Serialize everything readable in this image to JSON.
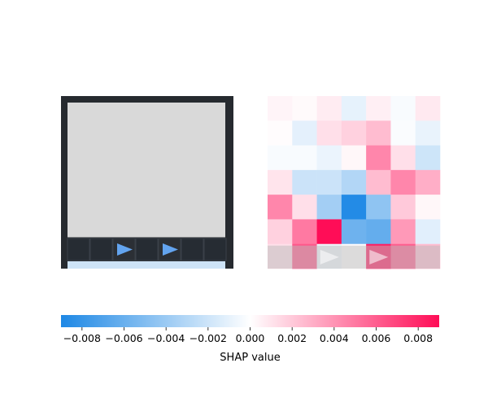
{
  "panel_left": {
    "cells": [
      [
        "e",
        "e",
        "e",
        "e",
        "e",
        "e",
        "e"
      ],
      [
        "e",
        "e",
        "e",
        "e",
        "e",
        "e",
        "e"
      ],
      [
        "e",
        "e",
        "e",
        "e",
        "e",
        "e",
        "e"
      ],
      [
        "e",
        "e",
        "e",
        "e",
        "e",
        "e",
        "e"
      ],
      [
        "e",
        "e",
        "e",
        "e",
        "e",
        "e",
        "e"
      ],
      [
        "d",
        "d",
        "a",
        "d",
        "a",
        "d",
        "d"
      ],
      [
        "t",
        "t",
        "t",
        "t",
        "t",
        "t",
        "t"
      ]
    ],
    "palette": {
      "e": "#d9d9d9",
      "d": "#262c33",
      "a": "#2b2f35",
      "t": "#cde3f7"
    },
    "arrow_color": "#63a4ef",
    "frame_color": "#262a2f"
  },
  "panel_right": {
    "shap_values": [
      [
        0.0004,
        0.0002,
        0.0007,
        -0.001,
        0.0006,
        -0.0003,
        0.0008
      ],
      [
        0.0001,
        -0.0011,
        0.0012,
        0.0017,
        0.0025,
        -0.0002,
        -0.0009
      ],
      [
        -0.0003,
        -0.0003,
        -0.0008,
        0.0003,
        0.0045,
        0.0012,
        -0.002
      ],
      [
        0.001,
        -0.0021,
        -0.0021,
        -0.0031,
        0.0025,
        0.0045,
        0.003
      ],
      [
        0.0045,
        0.0012,
        -0.0037,
        -0.0088,
        -0.0045,
        0.002,
        0.0003
      ],
      [
        0.0017,
        0.005,
        0.009,
        -0.0058,
        -0.0062,
        0.0038,
        -0.0012
      ],
      [
        0.0012,
        0.0062,
        -0.0006,
        0.0001,
        0.0084,
        0.006,
        0.0025
      ]
    ],
    "overlay_cells": [
      [
        6,
        0
      ],
      [
        6,
        1
      ],
      [
        6,
        2
      ],
      [
        6,
        3
      ],
      [
        6,
        4
      ],
      [
        6,
        5
      ],
      [
        6,
        6
      ]
    ],
    "overlay_arrows": [
      [
        6,
        2
      ],
      [
        6,
        4
      ]
    ],
    "overlay_color": "#b9b9b9"
  },
  "colorbar": {
    "min": -0.009,
    "max": 0.009,
    "ticks": [
      -0.008,
      -0.006,
      -0.004,
      -0.002,
      0.0,
      0.002,
      0.004,
      0.006,
      0.008
    ],
    "tick_labels": [
      "−0.008",
      "−0.006",
      "−0.004",
      "−0.002",
      "0.000",
      "0.002",
      "0.004",
      "0.006",
      "0.008"
    ],
    "label": "SHAP value",
    "negative_color": "#1e88e5",
    "positive_color": "#ff0d57",
    "neutral_color": "#ffffff"
  }
}
